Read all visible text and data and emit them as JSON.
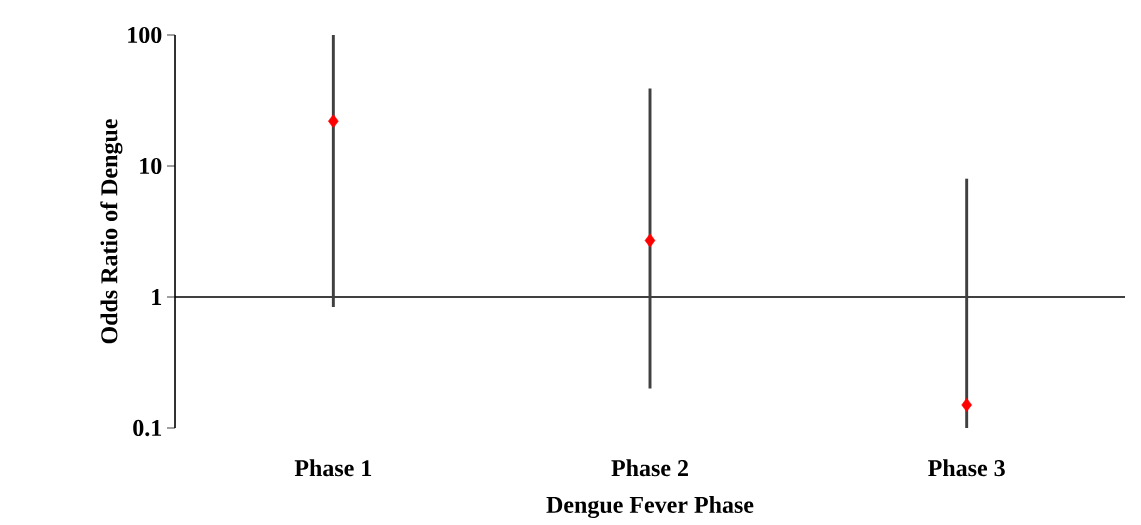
{
  "chart_data": {
    "type": "scatter",
    "categories": [
      "Phase 1",
      "Phase 2",
      "Phase 3"
    ],
    "series": [
      {
        "values": [
          22,
          2.7,
          0.15
        ],
        "errors": [
          [
            0.84,
            100
          ],
          [
            0.2,
            39
          ],
          [
            0.1,
            8
          ]
        ],
        "color": "#ff0000"
      }
    ],
    "xlabel": "Dengue Fever Phase",
    "ylabel": "Odds Ratio of Dengue",
    "log": "y",
    "ylim": [
      0.1,
      100
    ],
    "yticks": [
      0.1,
      1,
      10,
      100
    ],
    "marker": "diamond",
    "grid": false,
    "ref_lines": [
      {
        "axis": "y",
        "value": 1,
        "color": "#000000"
      }
    ]
  }
}
